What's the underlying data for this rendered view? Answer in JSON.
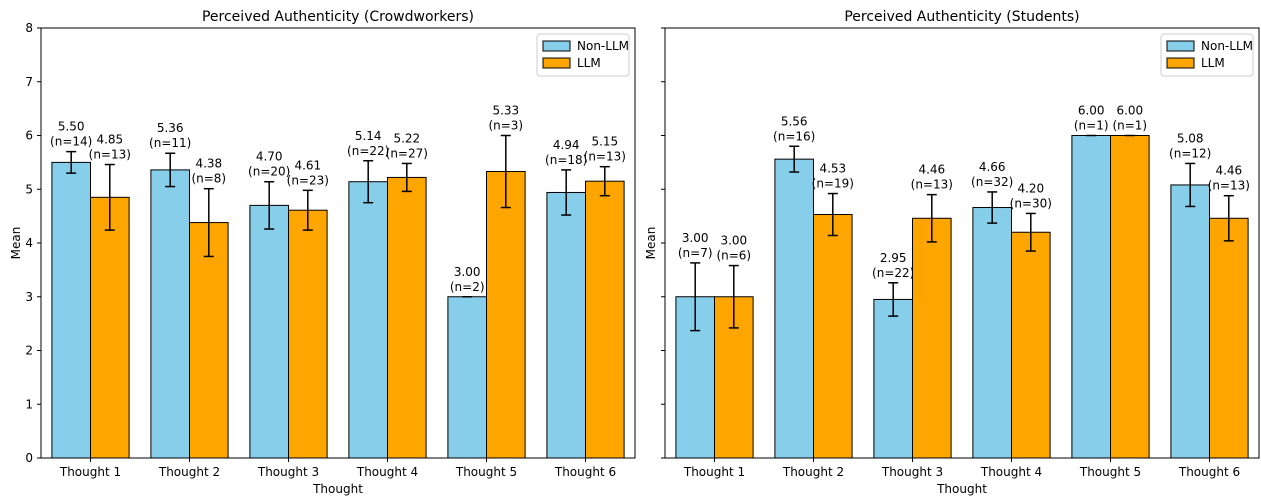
{
  "chart_data": [
    {
      "type": "bar",
      "title": "Perceived Authenticity (Crowdworkers)",
      "xlabel": "Thought",
      "ylabel": "Mean",
      "ylim": [
        0,
        8
      ],
      "yticks": [
        "0",
        "1",
        "2",
        "3",
        "4",
        "5",
        "6",
        "7",
        "8"
      ],
      "categories": [
        "Thought 1",
        "Thought 2",
        "Thought 3",
        "Thought 4",
        "Thought 5",
        "Thought 6"
      ],
      "legend_position": "top-right",
      "grid": false,
      "series": [
        {
          "name": "Non-LLM",
          "color": "#87CEEB",
          "values": [
            5.5,
            5.36,
            4.7,
            5.14,
            3.0,
            4.94
          ],
          "errors": [
            0.2,
            0.31,
            0.44,
            0.39,
            0.0,
            0.42
          ],
          "labels": [
            "5.50",
            "5.36",
            "4.70",
            "5.14",
            "3.00",
            "4.94"
          ],
          "n_labels": [
            "(n=14)",
            "(n=11)",
            "(n=20)",
            "(n=22)",
            "(n=2)",
            "(n=18)"
          ]
        },
        {
          "name": "LLM",
          "color": "#FFA500",
          "values": [
            4.85,
            4.38,
            4.61,
            5.22,
            5.33,
            5.15
          ],
          "errors": [
            0.61,
            0.63,
            0.37,
            0.26,
            0.67,
            0.27
          ],
          "labels": [
            "4.85",
            "4.38",
            "4.61",
            "5.22",
            "5.33",
            "5.15"
          ],
          "n_labels": [
            "(n=13)",
            "(n=8)",
            "(n=23)",
            "(n=27)",
            "(n=3)",
            "(n=13)"
          ]
        }
      ]
    },
    {
      "type": "bar",
      "title": "Perceived Authenticity (Students)",
      "xlabel": "Thought",
      "ylabel": "Mean",
      "ylim": [
        0,
        8
      ],
      "yticks": [],
      "categories": [
        "Thought 1",
        "Thought 2",
        "Thought 3",
        "Thought 4",
        "Thought 5",
        "Thought 6"
      ],
      "legend_position": "top-right",
      "grid": false,
      "series": [
        {
          "name": "Non-LLM",
          "color": "#87CEEB",
          "values": [
            3.0,
            5.56,
            2.95,
            4.66,
            6.0,
            5.08
          ],
          "errors": [
            0.63,
            0.24,
            0.31,
            0.29,
            0.0,
            0.4
          ],
          "labels": [
            "3.00",
            "5.56",
            "2.95",
            "4.66",
            "6.00",
            "5.08"
          ],
          "n_labels": [
            "(n=7)",
            "(n=16)",
            "(n=22)",
            "(n=32)",
            "(n=1)",
            "(n=12)"
          ]
        },
        {
          "name": "LLM",
          "color": "#FFA500",
          "values": [
            3.0,
            4.53,
            4.46,
            4.2,
            6.0,
            4.46
          ],
          "errors": [
            0.58,
            0.39,
            0.44,
            0.35,
            0.0,
            0.42
          ],
          "labels": [
            "3.00",
            "4.53",
            "4.46",
            "4.20",
            "6.00",
            "4.46"
          ],
          "n_labels": [
            "(n=6)",
            "(n=19)",
            "(n=13)",
            "(n=30)",
            "(n=1)",
            "(n=13)"
          ]
        }
      ]
    }
  ]
}
